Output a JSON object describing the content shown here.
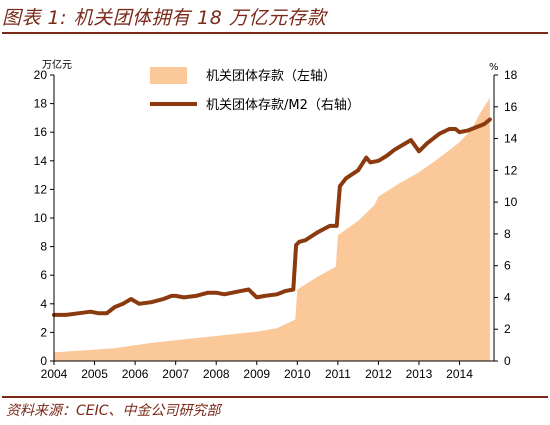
{
  "title": "图表 1: 机关团体拥有 18 万亿元存款",
  "source": "资料来源：CEIC、中金公司研究部",
  "chart_data": {
    "type": "area",
    "left_unit": "万亿元",
    "right_unit": "%",
    "x_ticks": [
      "2004",
      "2005",
      "2006",
      "2007",
      "2008",
      "2009",
      "2010",
      "2011",
      "2012",
      "2013",
      "2014"
    ],
    "x_range": [
      2004.0,
      2014.85
    ],
    "left_ticks": [
      "0",
      "2",
      "4",
      "6",
      "8",
      "10",
      "12",
      "14",
      "16",
      "18",
      "20"
    ],
    "right_ticks": [
      "0",
      "2",
      "4",
      "6",
      "8",
      "10",
      "12",
      "14",
      "16",
      "18"
    ],
    "ylim_left": [
      0,
      20
    ],
    "ylim_right": [
      0,
      18
    ],
    "legend_position": "top-center",
    "series": [
      {
        "name": "机关团体存款（左轴）",
        "axis": "left",
        "kind": "area",
        "color": "#fbc89a",
        "x": [
          2004.0,
          2004.5,
          2005.0,
          2005.5,
          2006.0,
          2006.5,
          2007.0,
          2007.5,
          2008.0,
          2008.5,
          2009.0,
          2009.5,
          2009.95,
          2010.0,
          2010.5,
          2010.95,
          2011.0,
          2011.5,
          2011.9,
          2012.0,
          2012.5,
          2013.0,
          2013.5,
          2014.0,
          2014.3,
          2014.5,
          2014.75
        ],
        "values": [
          0.6,
          0.7,
          0.8,
          0.9,
          1.1,
          1.3,
          1.45,
          1.6,
          1.75,
          1.9,
          2.05,
          2.3,
          2.9,
          5.0,
          5.9,
          6.6,
          8.8,
          9.8,
          10.9,
          11.5,
          12.4,
          13.2,
          14.2,
          15.3,
          16.2,
          17.3,
          18.4
        ]
      },
      {
        "name": "机关团体存款/M2（右轴）",
        "axis": "right",
        "kind": "line",
        "color": "#8b3a10",
        "x": [
          2004.0,
          2004.3,
          2004.6,
          2004.9,
          2005.1,
          2005.3,
          2005.5,
          2005.7,
          2005.9,
          2006.1,
          2006.4,
          2006.7,
          2006.9,
          2007.0,
          2007.2,
          2007.5,
          2007.8,
          2008.0,
          2008.2,
          2008.4,
          2008.6,
          2008.8,
          2009.0,
          2009.2,
          2009.5,
          2009.7,
          2009.9,
          2009.97,
          2010.05,
          2010.2,
          2010.5,
          2010.8,
          2010.97,
          2011.05,
          2011.2,
          2011.5,
          2011.7,
          2011.8,
          2012.0,
          2012.2,
          2012.4,
          2012.6,
          2012.8,
          2013.0,
          2013.2,
          2013.5,
          2013.75,
          2013.9,
          2014.0,
          2014.2,
          2014.4,
          2014.6,
          2014.75
        ],
        "values": [
          2.9,
          2.9,
          3.0,
          3.1,
          3.0,
          3.0,
          3.4,
          3.6,
          3.9,
          3.6,
          3.7,
          3.9,
          4.1,
          4.1,
          4.0,
          4.1,
          4.3,
          4.3,
          4.2,
          4.3,
          4.4,
          4.5,
          4.0,
          4.1,
          4.2,
          4.4,
          4.5,
          7.3,
          7.5,
          7.6,
          8.1,
          8.5,
          8.5,
          11.0,
          11.5,
          12.0,
          12.8,
          12.5,
          12.6,
          12.9,
          13.3,
          13.6,
          13.9,
          13.2,
          13.7,
          14.3,
          14.6,
          14.6,
          14.4,
          14.5,
          14.7,
          14.9,
          15.2
        ]
      }
    ]
  }
}
